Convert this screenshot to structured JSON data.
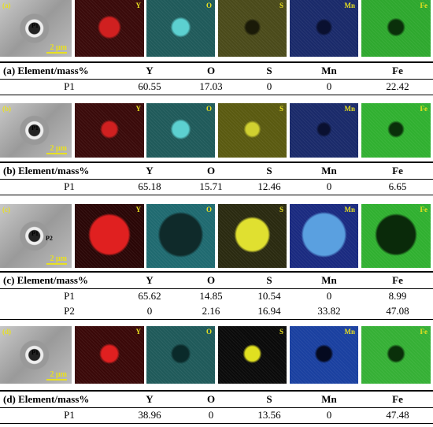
{
  "panels": [
    {
      "sem": {
        "label": "(a)",
        "points": [
          "P1"
        ],
        "scale": "2 μm"
      },
      "maps": [
        "Y",
        "O",
        "S",
        "Mn",
        "Fe"
      ],
      "table": {
        "header": [
          "(a) Element/mass%",
          "Y",
          "O",
          "S",
          "Mn",
          "Fe"
        ],
        "rows": [
          [
            "P1",
            "60.55",
            "17.03",
            "0",
            "0",
            "22.42"
          ]
        ]
      }
    },
    {
      "sem": {
        "label": "(b)",
        "points": [
          "P1"
        ],
        "scale": "2 μm"
      },
      "maps": [
        "Y",
        "O",
        "S",
        "Mn",
        "Fe"
      ],
      "table": {
        "header": [
          "(b) Element/mass%",
          "Y",
          "O",
          "S",
          "Mn",
          "Fe"
        ],
        "rows": [
          [
            "P1",
            "65.18",
            "15.71",
            "12.46",
            "0",
            "6.65"
          ]
        ]
      }
    },
    {
      "sem": {
        "label": "(c)",
        "points": [
          "P1",
          "P2"
        ],
        "scale": "2 μm"
      },
      "maps": [
        "Y",
        "O",
        "S",
        "Mn",
        "Fe"
      ],
      "table": {
        "header": [
          "(c) Element/mass%",
          "Y",
          "O",
          "S",
          "Mn",
          "Fe"
        ],
        "rows": [
          [
            "P1",
            "65.62",
            "14.85",
            "10.54",
            "0",
            "8.99"
          ],
          [
            "P2",
            "0",
            "2.16",
            "16.94",
            "33.82",
            "47.08"
          ]
        ]
      }
    },
    {
      "sem": {
        "label": "(d)",
        "points": [
          "P1"
        ],
        "scale": "2 μm"
      },
      "maps": [
        "Y",
        "O",
        "S",
        "Mn",
        "Fe"
      ],
      "table": {
        "header": [
          "(d) Element/mass%",
          "Y",
          "O",
          "S",
          "Mn",
          "Fe"
        ],
        "rows": [
          [
            "P1",
            "38.96",
            "0",
            "13.56",
            "0",
            "47.48"
          ]
        ]
      }
    }
  ]
}
